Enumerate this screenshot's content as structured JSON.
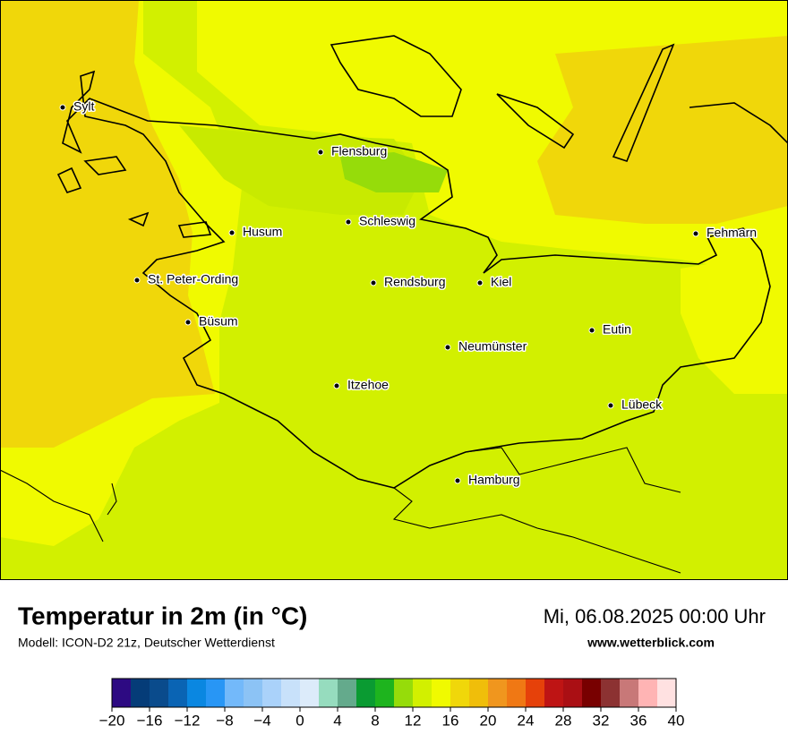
{
  "header": {
    "title": "Temperatur in 2m (in °C)",
    "subtitle": "Modell: ICON-D2 21z, Deutscher Wetterdienst",
    "datetime": "Mi, 06.08.2025 00:00 Uhr",
    "website": "www.wetterblick.com"
  },
  "cities": [
    "Sylt",
    "Flensburg",
    "Schleswig",
    "Husum",
    "Fehmarn",
    "St. Peter-Ording",
    "Rendsburg",
    "Kiel",
    "Büsum",
    "Eutin",
    "Neumünster",
    "Itzehoe",
    "Lübeck",
    "Hamburg"
  ],
  "colorbar": {
    "colors": [
      "#2d0a82",
      "#053c78",
      "#0a4b8c",
      "#0a64b4",
      "#0a87e1",
      "#2896f5",
      "#73b9fa",
      "#8cc3f5",
      "#aad2fa",
      "#c8e1fa",
      "#dcebfa",
      "#96dcbe",
      "#64aa8c",
      "#0a9b32",
      "#1eb41e",
      "#96dc0a",
      "#d2f000",
      "#f0fa00",
      "#f0d70a",
      "#f0be0a",
      "#f0961e",
      "#f07814",
      "#e6410a",
      "#be1414",
      "#aa0f14",
      "#780000",
      "#8c3232",
      "#c87878",
      "#ffb4b4",
      "#ffe1e1"
    ],
    "ticks": [
      {
        "value": -20,
        "label": "−20"
      },
      {
        "value": -16,
        "label": "−16"
      },
      {
        "value": -12,
        "label": "−12"
      },
      {
        "value": -8,
        "label": "−8"
      },
      {
        "value": -4,
        "label": "−4"
      },
      0,
      4,
      8,
      12,
      16,
      20,
      24,
      28,
      32,
      36,
      40
    ]
  }
}
